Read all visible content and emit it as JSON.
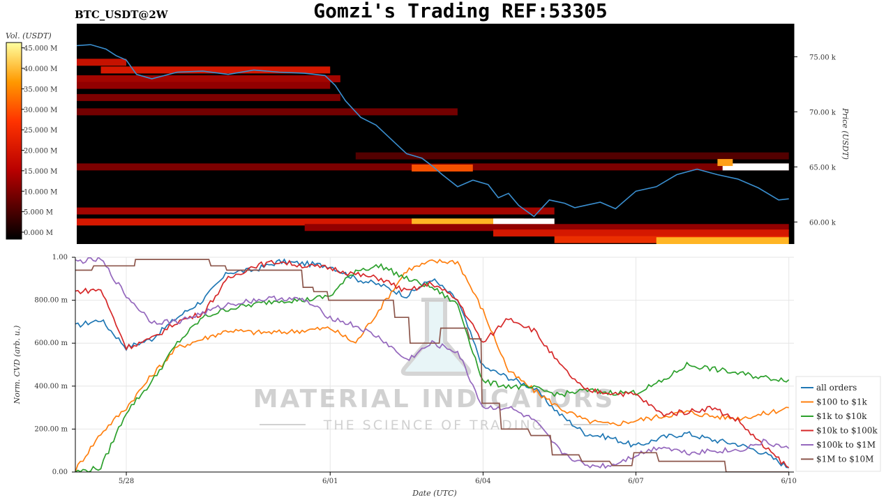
{
  "header": {
    "symbol": "BTC_USDT@2W",
    "title": "Gomzi's Trading REF:53305"
  },
  "watermark": {
    "line1": "MATERIAL INDICATORS",
    "line2": "THE SCIENCE OF TRADING"
  },
  "colors": {
    "heatmap_bg": "#000000",
    "price_line": "#3a8fd0",
    "grid": "#e6e6e6",
    "all_orders": "#1f77b4",
    "usd_100_1k": "#ff7f0e",
    "usd_1k_10k": "#2ca02c",
    "usd_10k_100k": "#d62728",
    "usd_100k_1m": "#9467bd",
    "usd_1m_10m": "#8c564b"
  },
  "chart_data": [
    {
      "type": "heatmap",
      "title": "Gomzi's Trading REF:53305",
      "ylabel": "Price (USDT)",
      "y_ticks": [
        "60.00 k",
        "65.00 k",
        "70.00 k",
        "75.00 k"
      ],
      "y_tick_values": [
        60000,
        65000,
        70000,
        75000
      ],
      "ylim": [
        58000,
        78000
      ],
      "colorbar": {
        "label": "Vol. (USDT)",
        "ticks": [
          "0.000 M",
          "5.000 M",
          "10.000 M",
          "15.000 M",
          "20.000 M",
          "25.000 M",
          "30.000 M",
          "35.000 M",
          "40.000 M",
          "45.000 M"
        ],
        "range": [
          0,
          48
        ]
      },
      "price_series": {
        "x": [
          0,
          0.3,
          0.6,
          0.8,
          1.0,
          1.2,
          1.5,
          2.0,
          2.5,
          3.0,
          3.5,
          4.0,
          4.5,
          4.9,
          5.1,
          5.3,
          5.6,
          5.9,
          6.2,
          6.5,
          6.8,
          7.0,
          7.2,
          7.5,
          7.8,
          8.1,
          8.3,
          8.5,
          8.7,
          9.0,
          9.3,
          9.6,
          9.8,
          10.0,
          10.3,
          10.6,
          11.0,
          11.4,
          11.8,
          12.2,
          12.6,
          13.0,
          13.4,
          13.8,
          14.0
        ],
        "y": [
          76000,
          76100,
          75700,
          75100,
          74700,
          73400,
          73000,
          73600,
          73700,
          73400,
          73800,
          73600,
          73500,
          73300,
          72400,
          71000,
          69500,
          68800,
          67500,
          66200,
          65800,
          65100,
          64300,
          63200,
          63800,
          63400,
          62200,
          62600,
          61500,
          60500,
          62000,
          61700,
          61300,
          61500,
          61800,
          61200,
          62800,
          63200,
          64300,
          64800,
          64300,
          63900,
          63100,
          62000,
          62100
        ]
      },
      "liquidity_bands": [
        {
          "price": 74500,
          "x_start": 0,
          "x_end": 1.0,
          "volume": 20
        },
        {
          "price": 73800,
          "x_start": 0.5,
          "x_end": 5.0,
          "volume": 22
        },
        {
          "price": 73000,
          "x_start": 0,
          "x_end": 5.2,
          "volume": 16
        },
        {
          "price": 72400,
          "x_start": 0,
          "x_end": 5.0,
          "volume": 14
        },
        {
          "price": 71300,
          "x_start": 0,
          "x_end": 5.2,
          "volume": 12
        },
        {
          "price": 70000,
          "x_start": 0,
          "x_end": 7.5,
          "volume": 11
        },
        {
          "price": 66000,
          "x_start": 5.5,
          "x_end": 14.0,
          "volume": 8
        },
        {
          "price": 65000,
          "x_start": 0,
          "x_end": 14.0,
          "volume": 12
        },
        {
          "price": 64900,
          "x_start": 6.6,
          "x_end": 7.8,
          "volume": 30
        },
        {
          "price": 65000,
          "x_start": 12.7,
          "x_end": 14.0,
          "volume": 50
        },
        {
          "price": 65400,
          "x_start": 12.6,
          "x_end": 12.9,
          "volume": 38
        },
        {
          "price": 61000,
          "x_start": 0,
          "x_end": 9.4,
          "volume": 16
        },
        {
          "price": 60000,
          "x_start": 0,
          "x_end": 9.4,
          "volume": 22
        },
        {
          "price": 60000,
          "x_start": 6.6,
          "x_end": 8.8,
          "volume": 40
        },
        {
          "price": 60000,
          "x_start": 8.2,
          "x_end": 9.4,
          "volume": 50
        },
        {
          "price": 59500,
          "x_start": 4.5,
          "x_end": 14.0,
          "volume": 14
        },
        {
          "price": 59000,
          "x_start": 8.2,
          "x_end": 14.0,
          "volume": 22
        },
        {
          "price": 58400,
          "x_start": 9.4,
          "x_end": 14.0,
          "volume": 26
        },
        {
          "price": 58300,
          "x_start": 11.4,
          "x_end": 14.0,
          "volume": 40
        }
      ]
    },
    {
      "type": "line",
      "xlabel": "Date (UTC)",
      "ylabel": "Norm. CVD (arb. u.)",
      "x_ticks": [
        "5/28",
        "6/01",
        "6/04",
        "6/07",
        "6/10"
      ],
      "x_tick_values": [
        1,
        5,
        8,
        11,
        14
      ],
      "xlim": [
        0,
        14.1
      ],
      "y_ticks": [
        "0.00",
        "200.00 m",
        "400.00 m",
        "600.00 m",
        "800.00 m",
        "1.00"
      ],
      "y_tick_values": [
        0,
        0.2,
        0.4,
        0.6,
        0.8,
        1.0
      ],
      "ylim": [
        0,
        1.0
      ],
      "legend": "right",
      "series": [
        {
          "name": "all orders",
          "color_key": "all_orders",
          "x": [
            0,
            0.5,
            1.0,
            1.5,
            2.0,
            2.5,
            3.0,
            3.5,
            4.0,
            4.5,
            5.0,
            5.5,
            6.0,
            6.5,
            7.0,
            7.5,
            8.0,
            8.5,
            9.0,
            9.5,
            10.0,
            10.5,
            11.0,
            11.5,
            12.0,
            12.5,
            13.0,
            13.5,
            14.0
          ],
          "y": [
            0.68,
            0.71,
            0.58,
            0.62,
            0.72,
            0.8,
            0.93,
            0.94,
            0.98,
            0.97,
            0.96,
            0.9,
            0.87,
            0.82,
            0.9,
            0.8,
            0.49,
            0.44,
            0.39,
            0.27,
            0.18,
            0.16,
            0.12,
            0.16,
            0.18,
            0.15,
            0.13,
            0.09,
            0.02
          ]
        },
        {
          "name": "$100 to $1k",
          "color_key": "usd_100_1k",
          "x": [
            0,
            0.5,
            1.0,
            1.5,
            2.0,
            2.5,
            3.0,
            3.5,
            4.0,
            4.5,
            5.0,
            5.5,
            6.0,
            6.5,
            7.0,
            7.5,
            8.0,
            8.5,
            9.0,
            9.5,
            10.0,
            10.5,
            11.0,
            11.5,
            12.0,
            12.5,
            13.0,
            13.5,
            14.0
          ],
          "y": [
            0.01,
            0.18,
            0.3,
            0.45,
            0.58,
            0.62,
            0.66,
            0.65,
            0.65,
            0.66,
            0.67,
            0.6,
            0.77,
            0.94,
            0.98,
            0.98,
            0.75,
            0.47,
            0.38,
            0.3,
            0.24,
            0.22,
            0.24,
            0.26,
            0.28,
            0.26,
            0.25,
            0.27,
            0.3
          ]
        },
        {
          "name": "$1k to $10k",
          "color_key": "usd_1k_10k",
          "x": [
            0,
            0.5,
            1.0,
            1.5,
            2.0,
            2.5,
            3.0,
            3.5,
            4.0,
            4.5,
            5.0,
            5.5,
            6.0,
            6.5,
            7.0,
            7.5,
            8.0,
            8.5,
            9.0,
            9.5,
            10.0,
            10.5,
            11.0,
            11.5,
            12.0,
            12.5,
            13.0,
            13.5,
            14.0
          ],
          "y": [
            0.0,
            0.02,
            0.28,
            0.42,
            0.6,
            0.72,
            0.76,
            0.78,
            0.8,
            0.8,
            0.82,
            0.94,
            0.96,
            0.9,
            0.86,
            0.78,
            0.42,
            0.4,
            0.39,
            0.36,
            0.38,
            0.37,
            0.37,
            0.42,
            0.5,
            0.48,
            0.46,
            0.44,
            0.43
          ]
        },
        {
          "name": "$10k to $100k",
          "color_key": "usd_10k_100k",
          "x": [
            0,
            0.5,
            1.0,
            1.5,
            2.0,
            2.5,
            3.0,
            3.5,
            4.0,
            4.5,
            5.0,
            5.5,
            6.0,
            6.5,
            7.0,
            7.5,
            8.0,
            8.5,
            9.0,
            9.5,
            10.0,
            10.5,
            11.0,
            11.5,
            12.0,
            12.5,
            13.0,
            13.5,
            14.0
          ],
          "y": [
            0.84,
            0.85,
            0.58,
            0.62,
            0.7,
            0.74,
            0.9,
            0.96,
            0.98,
            0.96,
            0.95,
            0.92,
            0.9,
            0.84,
            0.88,
            0.8,
            0.6,
            0.72,
            0.66,
            0.5,
            0.38,
            0.37,
            0.36,
            0.27,
            0.28,
            0.3,
            0.24,
            0.12,
            0.02
          ]
        },
        {
          "name": "$100k to $1M",
          "color_key": "usd_100k_1m",
          "x": [
            0,
            0.5,
            1.0,
            1.5,
            2.0,
            2.5,
            3.0,
            3.5,
            4.0,
            4.5,
            5.0,
            5.5,
            6.0,
            6.5,
            7.0,
            7.5,
            8.0,
            8.5,
            9.0,
            9.5,
            10.0,
            10.5,
            11.0,
            11.5,
            12.0,
            12.5,
            13.0,
            13.5,
            14.0
          ],
          "y": [
            0.98,
            0.99,
            0.82,
            0.7,
            0.7,
            0.74,
            0.78,
            0.8,
            0.81,
            0.8,
            0.72,
            0.68,
            0.62,
            0.52,
            0.6,
            0.56,
            0.3,
            0.3,
            0.24,
            0.1,
            0.03,
            0.03,
            0.08,
            0.12,
            0.09,
            0.1,
            0.1,
            0.14,
            0.11
          ]
        },
        {
          "name": "$1M to $10M",
          "color_key": "usd_1m_10m",
          "x": [
            0,
            0.4,
            1.0,
            1.2,
            2.3,
            2.7,
            3.0,
            4.2,
            4.5,
            4.7,
            5.0,
            6.0,
            6.3,
            6.6,
            6.9,
            7.2,
            7.8,
            8.0,
            8.4,
            9.0,
            9.4,
            10.0,
            10.6,
            11.0,
            11.5,
            12.0,
            12.5,
            12.8,
            14.0
          ],
          "y": [
            0.94,
            0.96,
            0.96,
            0.99,
            0.99,
            0.96,
            0.94,
            0.94,
            0.86,
            0.84,
            0.8,
            0.8,
            0.72,
            0.6,
            0.6,
            0.67,
            0.62,
            0.32,
            0.2,
            0.17,
            0.08,
            0.05,
            0.03,
            0.09,
            0.05,
            0.05,
            0.05,
            0.0,
            0.0
          ]
        }
      ]
    }
  ]
}
